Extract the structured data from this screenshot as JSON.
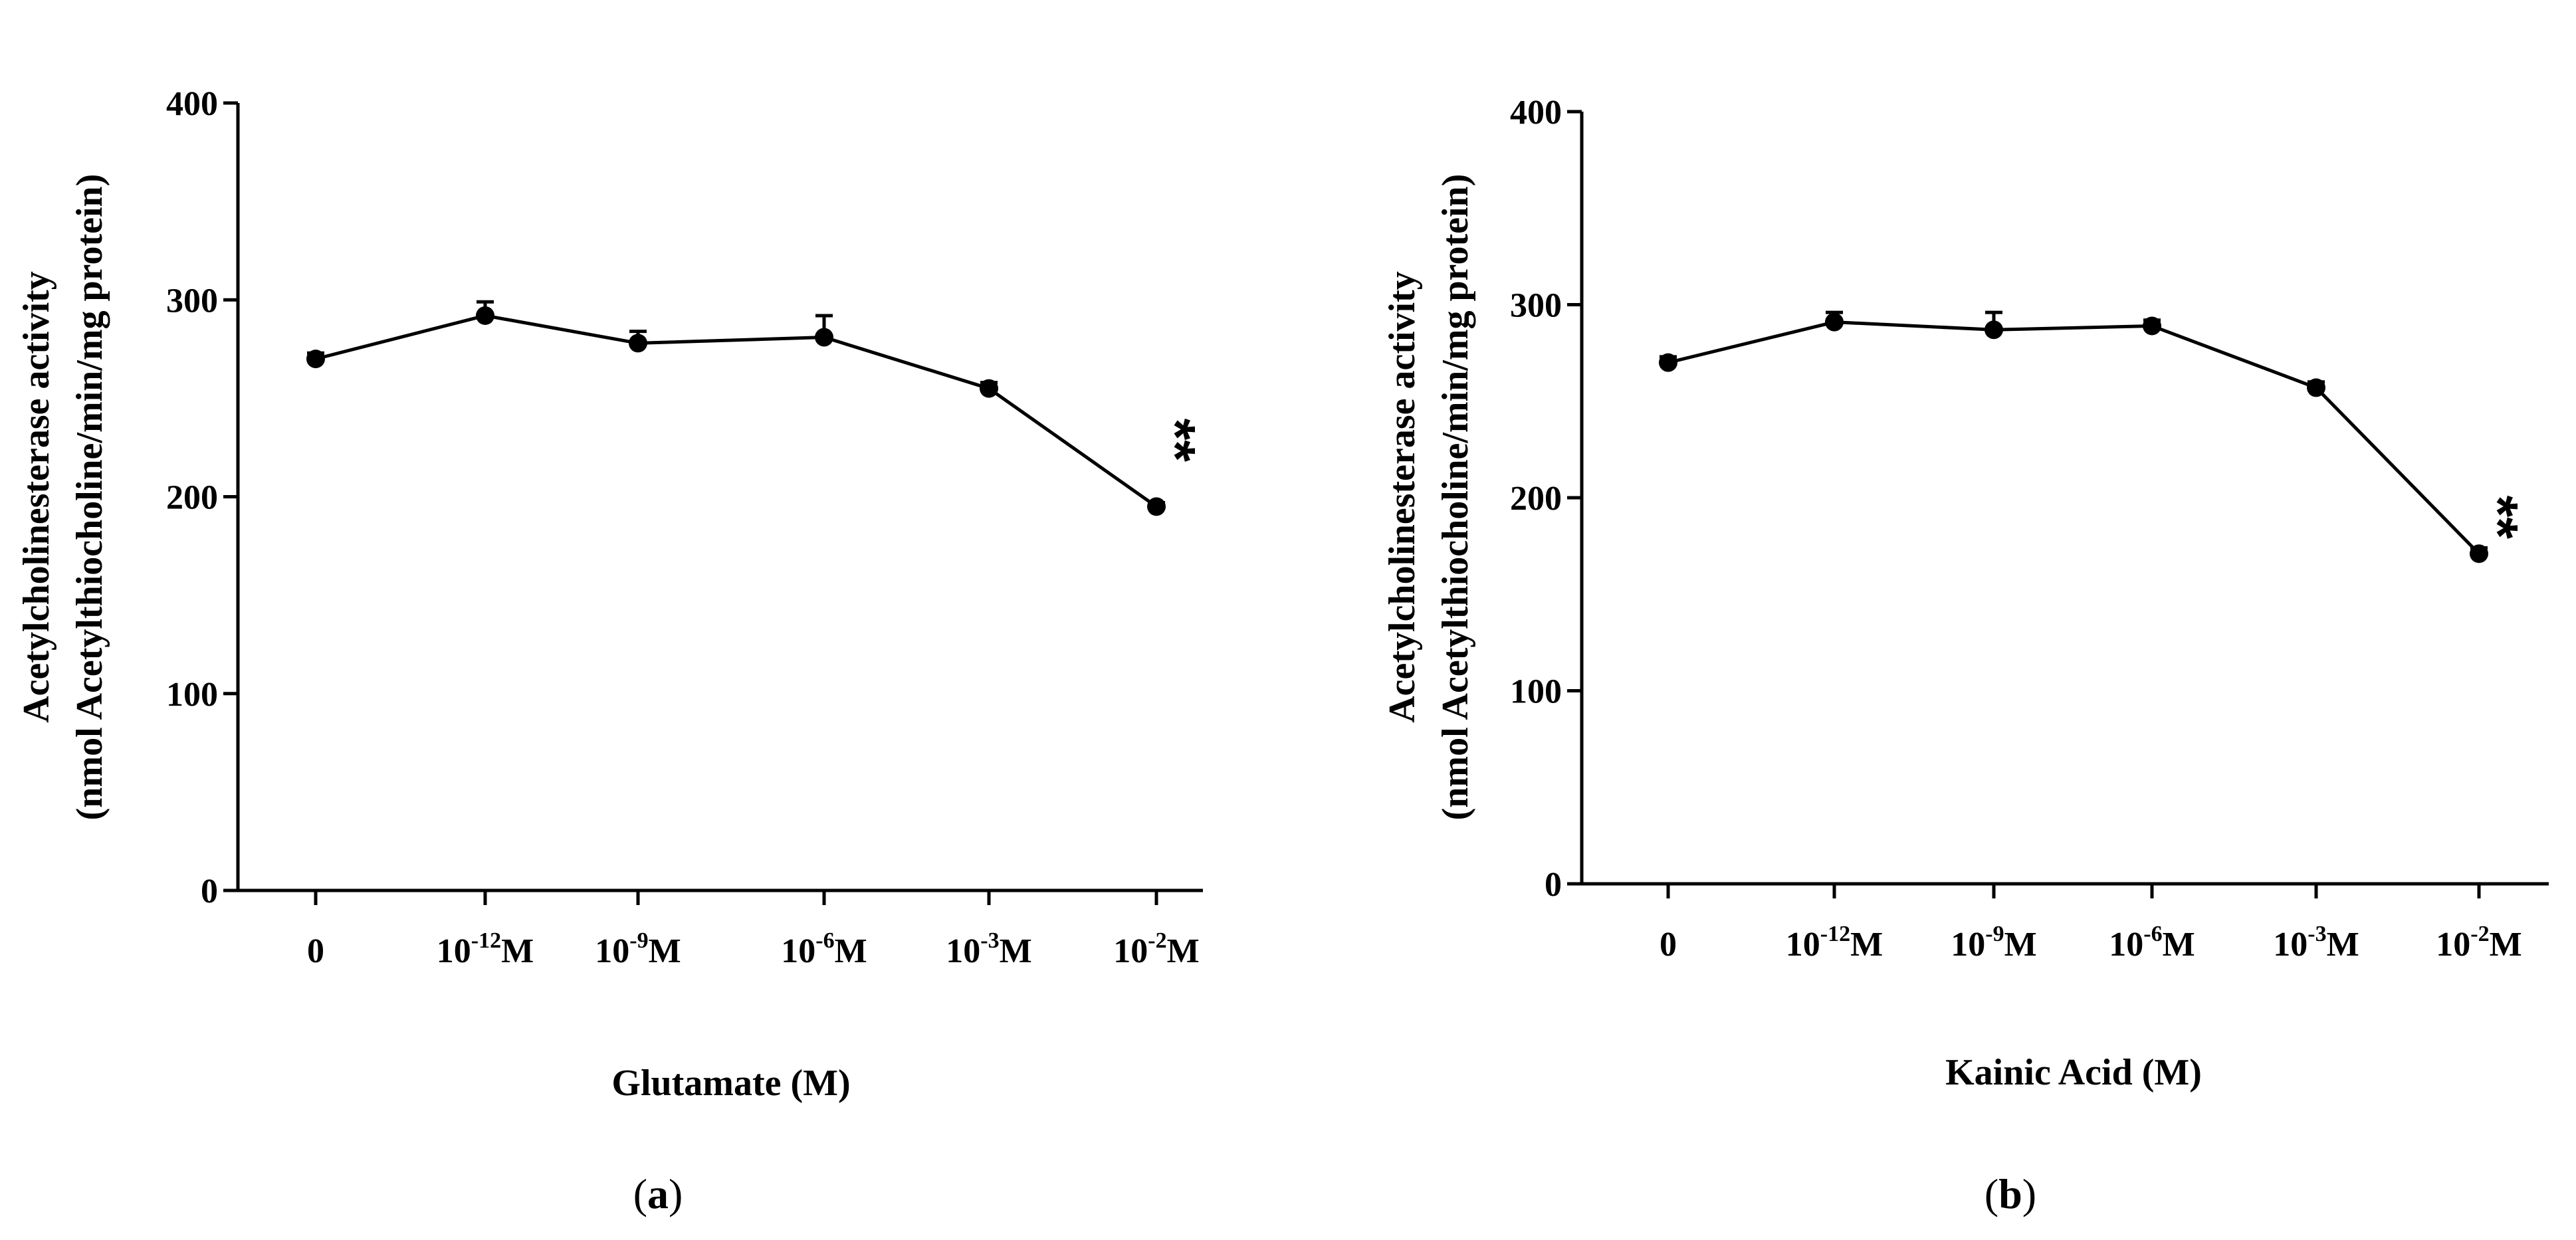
{
  "chart_data": [
    {
      "type": "line",
      "panel": "a",
      "caption_letter": "a",
      "categories": [
        "0",
        "10-12M",
        "10-9M",
        "10-6M",
        "10-3M",
        "10-2M"
      ],
      "category_labels": [
        {
          "base": "0",
          "sup": "",
          "unit": ""
        },
        {
          "base": "10",
          "sup": "-12",
          "unit": "M"
        },
        {
          "base": "10",
          "sup": "-9",
          "unit": "M"
        },
        {
          "base": "10",
          "sup": "-6",
          "unit": "M"
        },
        {
          "base": "10",
          "sup": "-3",
          "unit": "M"
        },
        {
          "base": "10",
          "sup": "-2",
          "unit": "M"
        }
      ],
      "values": [
        270,
        292,
        278,
        281,
        255,
        195
      ],
      "errors": [
        3,
        7,
        6,
        11,
        3,
        2
      ],
      "ylim": [
        0,
        400
      ],
      "yticks": [
        0,
        100,
        200,
        300,
        400
      ],
      "xlabel": "Glutamate (M)",
      "ylabel_line1": "Acetylcholinesterase activity",
      "ylabel_line2": "(nmol Acetylthiocholine/min/mg protein)",
      "annotations": [
        {
          "category_index": 5,
          "text": "**"
        }
      ]
    },
    {
      "type": "line",
      "panel": "b",
      "caption_letter": "b",
      "categories": [
        "0",
        "10-12M",
        "10-9M",
        "10-6M",
        "10-3M",
        "10-2M"
      ],
      "category_labels": [
        {
          "base": "0",
          "sup": "",
          "unit": ""
        },
        {
          "base": "10",
          "sup": "-12",
          "unit": "M"
        },
        {
          "base": "10",
          "sup": "-9",
          "unit": "M"
        },
        {
          "base": "10",
          "sup": "-6",
          "unit": "M"
        },
        {
          "base": "10",
          "sup": "-3",
          "unit": "M"
        },
        {
          "base": "10",
          "sup": "-2",
          "unit": "M"
        }
      ],
      "values": [
        270,
        291,
        287,
        289,
        257,
        171
      ],
      "errors": [
        3,
        5,
        9,
        3,
        3,
        3
      ],
      "ylim": [
        0,
        400
      ],
      "yticks": [
        0,
        100,
        200,
        300,
        400
      ],
      "xlabel": "Kainic Acid (M)",
      "ylabel_line1": "Acetylcholinesterase activity",
      "ylabel_line2": "(nmol Acetylthiocholine/min/mg protein)",
      "annotations": [
        {
          "category_index": 5,
          "text": "**"
        }
      ]
    }
  ]
}
